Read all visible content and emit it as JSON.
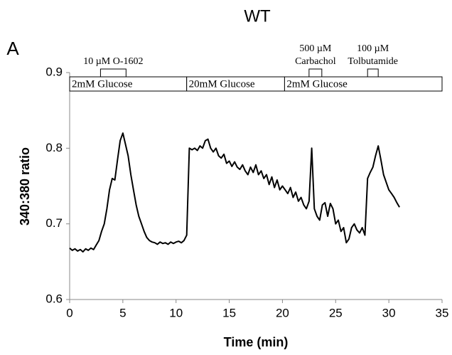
{
  "chart_data": {
    "type": "line",
    "title": "WT",
    "panel_label": "A",
    "x_label": "Time (min)",
    "y_label": "340:380 ratio",
    "xlim": [
      0,
      35
    ],
    "xticks": [
      0,
      5,
      10,
      15,
      20,
      25,
      30,
      35
    ],
    "ylim": [
      0.6,
      0.9
    ],
    "yticks": [
      0.6,
      0.7,
      0.8,
      0.9
    ],
    "grid": false,
    "color": "#000000",
    "conditions": [
      {
        "label": "2mM Glucose",
        "start": 0,
        "end": 11
      },
      {
        "label": "20mM Glucose",
        "start": 11,
        "end": 20.2
      },
      {
        "label": "2mM Glucose",
        "start": 20.2,
        "end": 35
      }
    ],
    "treatments": [
      {
        "label": [
          "10 µM O-1602"
        ],
        "start": 2.9,
        "end": 5.3
      },
      {
        "label": [
          "500 µM",
          "Carbachol"
        ],
        "start": 22.5,
        "end": 23.7
      },
      {
        "label": [
          "100 µM",
          "Tolbutamide"
        ],
        "start": 28,
        "end": 29
      }
    ],
    "x": [
      0,
      0.25,
      0.5,
      0.75,
      1,
      1.25,
      1.5,
      1.75,
      2,
      2.25,
      2.5,
      2.75,
      3,
      3.25,
      3.5,
      3.75,
      4,
      4.25,
      4.5,
      4.75,
      5,
      5.25,
      5.5,
      5.75,
      6,
      6.25,
      6.5,
      6.75,
      7,
      7.25,
      7.5,
      7.75,
      8,
      8.25,
      8.5,
      8.75,
      9,
      9.25,
      9.5,
      9.75,
      10,
      10.25,
      10.5,
      10.75,
      11,
      11.25,
      11.5,
      11.75,
      12,
      12.25,
      12.5,
      12.75,
      13,
      13.25,
      13.5,
      13.75,
      14,
      14.25,
      14.5,
      14.75,
      15,
      15.25,
      15.5,
      15.75,
      16,
      16.25,
      16.5,
      16.75,
      17,
      17.25,
      17.5,
      17.75,
      18,
      18.25,
      18.5,
      18.75,
      19,
      19.25,
      19.5,
      19.75,
      20,
      20.25,
      20.5,
      20.75,
      21,
      21.25,
      21.5,
      21.75,
      22,
      22.25,
      22.5,
      22.75,
      23,
      23.25,
      23.5,
      23.75,
      24,
      24.25,
      24.5,
      24.75,
      25,
      25.25,
      25.5,
      25.75,
      26,
      26.25,
      26.5,
      26.75,
      27,
      27.25,
      27.5,
      27.75,
      28,
      28.25,
      28.5,
      28.75,
      29,
      29.25,
      29.5,
      29.75,
      30,
      30.25,
      30.5,
      30.75,
      31
    ],
    "values": [
      0.668,
      0.665,
      0.667,
      0.664,
      0.666,
      0.663,
      0.667,
      0.665,
      0.668,
      0.666,
      0.672,
      0.678,
      0.69,
      0.7,
      0.72,
      0.745,
      0.76,
      0.758,
      0.785,
      0.81,
      0.82,
      0.805,
      0.79,
      0.765,
      0.745,
      0.725,
      0.71,
      0.7,
      0.69,
      0.682,
      0.678,
      0.676,
      0.675,
      0.673,
      0.676,
      0.674,
      0.675,
      0.673,
      0.676,
      0.674,
      0.676,
      0.677,
      0.675,
      0.678,
      0.685,
      0.8,
      0.798,
      0.8,
      0.797,
      0.803,
      0.8,
      0.81,
      0.812,
      0.8,
      0.795,
      0.8,
      0.79,
      0.787,
      0.792,
      0.78,
      0.783,
      0.776,
      0.782,
      0.775,
      0.772,
      0.778,
      0.77,
      0.765,
      0.775,
      0.768,
      0.778,
      0.765,
      0.77,
      0.76,
      0.765,
      0.752,
      0.762,
      0.748,
      0.758,
      0.745,
      0.75,
      0.745,
      0.74,
      0.748,
      0.735,
      0.742,
      0.73,
      0.735,
      0.725,
      0.72,
      0.73,
      0.8,
      0.72,
      0.71,
      0.705,
      0.725,
      0.728,
      0.71,
      0.727,
      0.72,
      0.7,
      0.705,
      0.69,
      0.695,
      0.675,
      0.68,
      0.695,
      0.7,
      0.692,
      0.688,
      0.695,
      0.685,
      0.76,
      0.768,
      0.775,
      0.79,
      0.803,
      0.785,
      0.765,
      0.755,
      0.745,
      0.74,
      0.735,
      0.728,
      0.722
    ]
  }
}
